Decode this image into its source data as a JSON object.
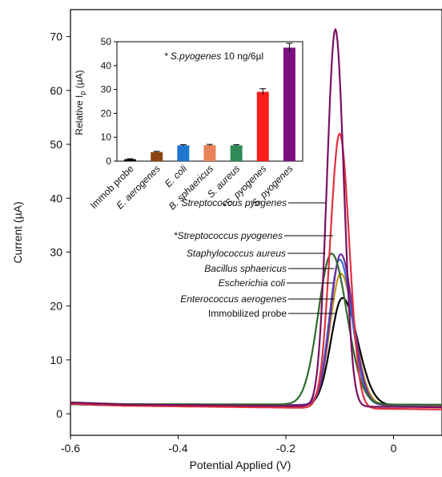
{
  "chart_data": [
    {
      "type": "line",
      "xlabel": "Potential Applied (V)",
      "ylabel": "Current (µA)",
      "xlim": [
        -0.6,
        0.09
      ],
      "ylim": [
        -4,
        75
      ],
      "xticks": [
        "-0.6",
        "-0.4",
        "-0.2",
        "0"
      ],
      "xtick_values": [
        -0.6,
        -0.4,
        -0.2,
        0
      ],
      "yticks": [
        "0",
        "10",
        "20",
        "30",
        "40",
        "50",
        "60",
        "70"
      ],
      "ytick_values": [
        0,
        10,
        20,
        30,
        40,
        50,
        60,
        70
      ],
      "grid": false,
      "legend": "callout labels with leader lines pointing to peaks",
      "series": [
        {
          "name": "Immobilized probe",
          "color": "#000000",
          "baseline": 1.5,
          "tail": 1.5,
          "peak": 20,
          "peak_x": -0.095,
          "wl": 0.03,
          "wr": 0.04
        },
        {
          "name": "Enterococcus aerogenes",
          "color": "#c8961e",
          "baseline": 1.6,
          "tail": 1.5,
          "peak": 24.5,
          "peak_x": -0.098,
          "wl": 0.028,
          "wr": 0.035
        },
        {
          "name": "Escherichia coli",
          "color": "#3a6fd1",
          "baseline": 1.7,
          "tail": 1.6,
          "peak": 27,
          "peak_x": -0.1,
          "wl": 0.027,
          "wr": 0.032
        },
        {
          "name": "Bacillus sphaericus",
          "color": "#7030a0",
          "baseline": 1.7,
          "tail": 1.6,
          "peak": 28,
          "peak_x": -0.098,
          "wl": 0.027,
          "wr": 0.032
        },
        {
          "name": "Staphylococcus aureus",
          "color": "#2e6b2e",
          "baseline": 1.8,
          "tail": 1.7,
          "peak": 28,
          "peak_x": -0.115,
          "wl": 0.035,
          "wr": 0.04
        },
        {
          "name": "*Streptococcus pyogenes",
          "color": "#e03040",
          "baseline": 1.6,
          "tail": 0.8,
          "peak": 51,
          "peak_x": -0.1,
          "wl": 0.025,
          "wr": 0.025
        },
        {
          "name": "Streptococcus pyogenes",
          "color": "#7a1060",
          "baseline": 1.8,
          "tail": 1.2,
          "peak": 70,
          "peak_x": -0.108,
          "wl": 0.022,
          "wr": 0.022
        }
      ]
    },
    {
      "type": "bar",
      "title": "* S.pyogenes 10 ng/6µl",
      "ylabel": "Relative Ip (µA)",
      "ylim": [
        0,
        50
      ],
      "yticks": [
        "0",
        "10",
        "20",
        "30",
        "40",
        "50"
      ],
      "ytick_values": [
        0,
        10,
        20,
        30,
        40,
        50
      ],
      "categories": [
        "Immob probe",
        "E. aerogenes",
        "E. coli",
        "B. sphaericus",
        "S. aureus",
        "*S. pyogenes",
        "S. pyogenes"
      ],
      "values": [
        0.8,
        3.8,
        6.6,
        6.7,
        6.6,
        29,
        47.5
      ],
      "errors": [
        0.2,
        0.3,
        0.3,
        0.3,
        0.3,
        1.3,
        1.8
      ],
      "colors": [
        "#000000",
        "#8b4513",
        "#1f77d0",
        "#e8825a",
        "#2e8b57",
        "#ff1e1e",
        "#7a1080"
      ]
    }
  ]
}
